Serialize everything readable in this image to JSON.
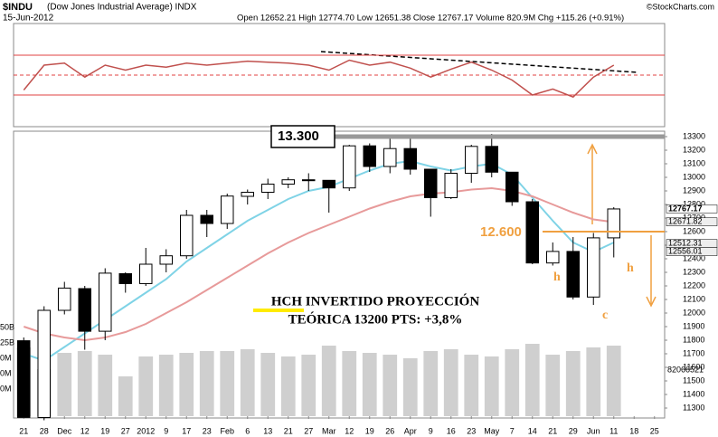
{
  "header": {
    "symbol": "$INDU",
    "name": "(Dow Jones Industrial Average) INDX",
    "date": "15-Jun-2012",
    "quote": "Open 12652.21  High 12774.70  Low 12651.38  Close 12767.17  Volume 820.9M  Chg +115.26 (+0.91%)",
    "source": "©StockCharts.com"
  },
  "chart_data": {
    "type": "candlestick",
    "categories": [
      "21",
      "28",
      "Dec",
      "12",
      "19",
      "27",
      "2012",
      "9",
      "17",
      "23",
      "Feb",
      "6",
      "13",
      "21",
      "27",
      "Mar",
      "12",
      "19",
      "26",
      "Apr",
      "9",
      "16",
      "23",
      "May",
      "7",
      "14",
      "21",
      "29",
      "Jun",
      "11",
      "18",
      "25"
    ],
    "open": [
      11796,
      11230,
      12020,
      12180,
      11866,
      12290,
      12217,
      12360,
      12422,
      12720,
      12660,
      12860,
      12890,
      12950,
      12982,
      12978,
      12922,
      13232,
      13080,
      13212,
      13060,
      12850,
      13030,
      13228,
      13038,
      12820,
      12369,
      12454,
      12118,
      12554,
      null,
      null
    ],
    "high": [
      11820,
      12050,
      12230,
      12200,
      12330,
      12300,
      12480,
      12470,
      12760,
      12760,
      12880,
      12910,
      12990,
      13000,
      13030,
      12980,
      13240,
      13250,
      13290,
      13300,
      13060,
      13060,
      13240,
      13320,
      13040,
      12840,
      12520,
      12560,
      12590,
      12780,
      null,
      null
    ],
    "low": [
      11230,
      11210,
      11990,
      11730,
      11800,
      12150,
      12200,
      12300,
      12400,
      12560,
      12620,
      12800,
      12840,
      12920,
      12900,
      12740,
      12900,
      13040,
      13030,
      13020,
      12710,
      12840,
      12960,
      13000,
      12790,
      12360,
      12350,
      12100,
      12060,
      12410,
      null,
      null
    ],
    "close": [
      11231,
      12020,
      12184,
      11866,
      12294,
      12217,
      12360,
      12422,
      12720,
      12660,
      12862,
      12890,
      12950,
      12982,
      12978,
      12922,
      13232,
      13080,
      13212,
      13060,
      12850,
      13030,
      13228,
      13038,
      12820,
      12369,
      12454,
      12118,
      12554,
      12767,
      null,
      null
    ],
    "up_color": "#ffffff",
    "down_color": "#000000",
    "ylim": [
      11240,
      13340
    ],
    "yticks": [
      11300,
      11400,
      11500,
      11600,
      11700,
      11800,
      11900,
      12000,
      12100,
      12200,
      12300,
      12400,
      12500,
      12600,
      12700,
      12800,
      12900,
      13000,
      13100,
      13200,
      13300
    ],
    "overlays": [
      {
        "color": "#7fd3e6",
        "values": [
          11700,
          11650,
          11750,
          11850,
          11950,
          12050,
          12150,
          12250,
          12380,
          12480,
          12580,
          12680,
          12760,
          12840,
          12900,
          12930,
          12990,
          13050,
          13100,
          13120,
          13080,
          13050,
          13080,
          13100,
          13020,
          12850,
          12680,
          12520,
          12450,
          12520,
          null,
          null
        ]
      },
      {
        "color": "#e79a9a",
        "values": [
          11900,
          11850,
          11820,
          11800,
          11820,
          11860,
          11920,
          12000,
          12080,
          12170,
          12260,
          12350,
          12440,
          12520,
          12590,
          12650,
          12710,
          12770,
          12820,
          12860,
          12880,
          12890,
          12910,
          12920,
          12900,
          12860,
          12800,
          12740,
          12690,
          12670,
          null,
          null
        ]
      }
    ],
    "price_labels": [
      12767.17,
      12671.82,
      12512.31,
      12556.01
    ],
    "volume": {
      "values": [
        3800,
        2600,
        3500,
        3600,
        3400,
        2200,
        3300,
        3400,
        3500,
        3600,
        3600,
        3700,
        3500,
        3300,
        3400,
        3900,
        3600,
        3500,
        3400,
        3200,
        3600,
        3700,
        3400,
        3300,
        3700,
        4000,
        3400,
        3600,
        3800,
        3900,
        null,
        null
      ],
      "ylim": [
        0,
        8000
      ],
      "color": "#cfcfcf",
      "label": "82066521",
      "axis_labels": [
        "50B",
        "25B",
        "0M",
        "0M",
        "0M"
      ]
    },
    "oscillator": {
      "values": [
        35,
        60,
        62,
        48,
        60,
        55,
        60,
        58,
        62,
        60,
        62,
        64,
        63,
        62,
        60,
        55,
        65,
        60,
        63,
        57,
        48,
        56,
        63,
        55,
        45,
        30,
        36,
        28,
        48,
        60,
        null,
        null
      ],
      "ylim": [
        0,
        100
      ],
      "yticks": [
        30,
        50,
        70
      ],
      "color": "#c0504d"
    },
    "levels": [
      {
        "label": "13.300",
        "value": 13300,
        "color": "#999999"
      },
      {
        "label": "12.600",
        "value": 12600,
        "color": "#f0a040"
      }
    ],
    "annotations": {
      "lines": [
        "HCH INVERTIDO PROYECCIÓN",
        "TEÓRICA 13200 PTS: +3,8%"
      ],
      "h1": "h",
      "h2": "h",
      "c": "c"
    }
  }
}
